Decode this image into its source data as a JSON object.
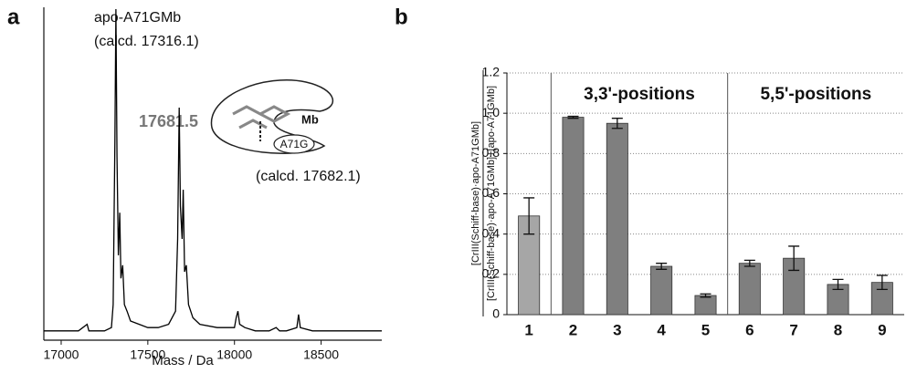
{
  "chart_data": [
    {
      "type": "line",
      "panel_label": "a",
      "annotations": [
        "apo-A71GMb",
        "(calcd. 17316.1)",
        "17681.5",
        "(calcd. 17682.1)"
      ],
      "inset_labels": [
        "Mb",
        "A71G"
      ],
      "xlabel": "Mass / Da",
      "x": [
        16900,
        17000,
        17100,
        17150,
        17160,
        17250,
        17290,
        17300,
        17310,
        17316,
        17322,
        17330,
        17338,
        17345,
        17355,
        17365,
        17380,
        17400,
        17450,
        17500,
        17560,
        17620,
        17660,
        17672,
        17681,
        17688,
        17698,
        17704,
        17712,
        17722,
        17735,
        17760,
        17800,
        17900,
        18000,
        18010,
        18020,
        18030,
        18060,
        18120,
        18200,
        18240,
        18260,
        18300,
        18360,
        18370,
        18380,
        18450,
        18600,
        18850
      ],
      "values": [
        2,
        2,
        2,
        4,
        2,
        2,
        3,
        10,
        60,
        100,
        55,
        25,
        38,
        18,
        22,
        10,
        8,
        5,
        4,
        3,
        3,
        4,
        8,
        30,
        70,
        40,
        30,
        45,
        20,
        22,
        10,
        6,
        4,
        3,
        3,
        6,
        8,
        4,
        3,
        2,
        2,
        3,
        2,
        2,
        3,
        7,
        3,
        2,
        2,
        2
      ],
      "color": "#000000",
      "xlim": [
        16900,
        18850
      ],
      "xticks": [
        17000,
        17500,
        18000,
        18500
      ],
      "ylim": [
        0,
        100
      ]
    },
    {
      "type": "bar",
      "panel_label": "b",
      "ylabel_numerator": "[CrIII(Schiff-base)·apo-A71GMb]",
      "ylabel_denominator": "[CrIII(Schiff-base)·apo-A71GMb]+[apo-A71GMb]",
      "categories": [
        "1",
        "2",
        "3",
        "4",
        "5",
        "6",
        "7",
        "8",
        "9"
      ],
      "values": [
        0.49,
        0.98,
        0.95,
        0.24,
        0.095,
        0.255,
        0.28,
        0.15,
        0.16
      ],
      "errors": [
        0.09,
        0.005,
        0.025,
        0.015,
        0.008,
        0.015,
        0.06,
        0.025,
        0.035
      ],
      "colors": [
        "#a6a6a6",
        "#7f7f7f",
        "#7f7f7f",
        "#7f7f7f",
        "#7f7f7f",
        "#7f7f7f",
        "#7f7f7f",
        "#7f7f7f",
        "#7f7f7f"
      ],
      "groups": [
        {
          "label": "3,3'-positions",
          "from": 1,
          "to": 4
        },
        {
          "label": "5,5'-positions",
          "from": 5,
          "to": 8
        }
      ],
      "ylim": [
        0,
        1.2
      ],
      "yticks": [
        0,
        0.2,
        0.4,
        0.6,
        0.8,
        {
          "value": 1,
          "label": "1.0"
        },
        1.2
      ],
      "grid": true
    }
  ]
}
